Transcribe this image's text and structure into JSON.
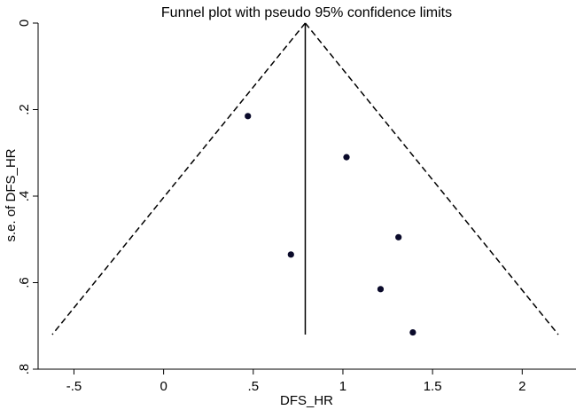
{
  "chart_data": {
    "type": "scatter",
    "title": "Funnel plot with pseudo 95% confidence limits",
    "xlabel": "DFS_HR",
    "ylabel": "s.e. of DFS_HR",
    "xlim": [
      -0.7,
      2.3
    ],
    "ylim": [
      0,
      0.8
    ],
    "y_reversed": true,
    "x_ticks": [
      -0.5,
      0,
      0.5,
      1,
      1.5,
      2
    ],
    "x_tick_labels": [
      "-.5",
      "0",
      ".5",
      "1",
      "1.5",
      "2"
    ],
    "y_ticks": [
      0,
      0.2,
      0.4,
      0.6,
      0.8
    ],
    "y_tick_labels": [
      "0",
      ".2",
      ".4",
      ".6",
      ".8"
    ],
    "pooled_estimate": 0.79,
    "max_se": 0.72,
    "limit_multiplier": 1.96,
    "grid": false,
    "legend": "none",
    "points": [
      {
        "x": 0.47,
        "y": 0.215
      },
      {
        "x": 1.02,
        "y": 0.31
      },
      {
        "x": 1.31,
        "y": 0.495
      },
      {
        "x": 0.71,
        "y": 0.535
      },
      {
        "x": 1.21,
        "y": 0.615
      },
      {
        "x": 1.39,
        "y": 0.715
      }
    ],
    "colors": {
      "points": "#0a0a2a",
      "lines": "#000000"
    }
  }
}
